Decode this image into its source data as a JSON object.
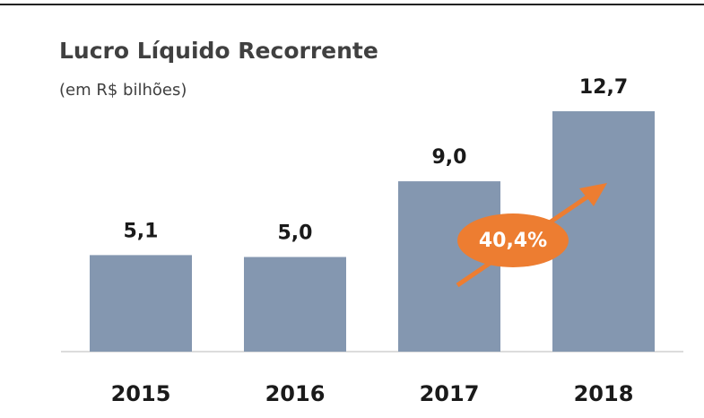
{
  "chart_data": {
    "type": "bar",
    "title": "Lucro Líquido Recorrente",
    "subtitle": "(em R$ bilhões)",
    "categories": [
      "2015",
      "2016",
      "2017",
      "2018"
    ],
    "values": [
      5.1,
      5.0,
      9.0,
      12.7
    ],
    "value_labels": [
      "5,1",
      "5,0",
      "9,0",
      "12,7"
    ],
    "color": "#8497b0",
    "ylim": [
      0,
      14
    ],
    "annotation": "40,4%"
  }
}
